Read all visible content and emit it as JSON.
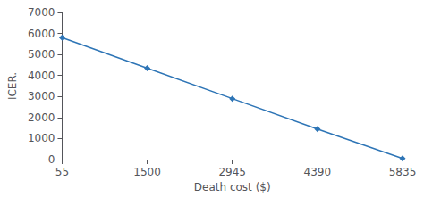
{
  "chart_data": {
    "type": "line",
    "x": [
      55,
      1500,
      2945,
      4390,
      5835
    ],
    "values": [
      5800,
      4350,
      2900,
      1450,
      50
    ],
    "color": "#2E75B6",
    "marker": "diamond",
    "xlabel": "Death cost ($)",
    "ylabel": "ICER.",
    "xlim": [
      55,
      5835
    ],
    "ylim": [
      0,
      7000
    ],
    "xticks": [
      55,
      1500,
      2945,
      4390,
      5835
    ],
    "yticks": [
      0,
      1000,
      2000,
      3000,
      4000,
      5000,
      6000,
      7000
    ],
    "grid": false
  }
}
